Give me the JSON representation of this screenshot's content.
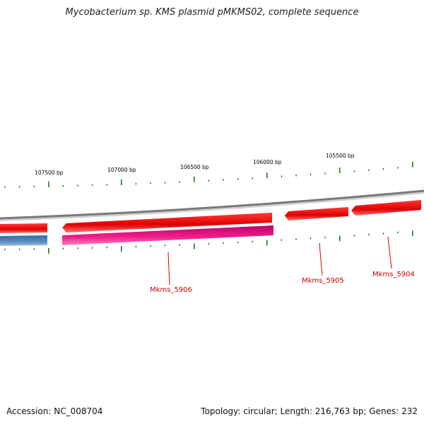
{
  "title": "Mycobacterium sp. KMS plasmid pMKMS02, complete sequence",
  "ruler": {
    "labels": [
      "107500 bp",
      "107000 bp",
      "106500 bp",
      "106000 bp",
      "105500 bp"
    ]
  },
  "genes": [
    {
      "locus": "Mkms_5906",
      "label_color": "#cc0000"
    },
    {
      "locus": "Mkms_5905",
      "label_color": "#cc0000"
    },
    {
      "locus": "Mkms_5904",
      "label_color": "#cc0000"
    }
  ],
  "colors": {
    "forward_strand": "#ee1111",
    "highlight_gene": "#e0147a",
    "blue_feature": "#4a7fb0",
    "backbone": "#888888",
    "ticks": "#1e7a1e"
  },
  "footer": {
    "accession": "Accession: NC_008704",
    "stats": "Topology: circular; Length: 216,763 bp; Genes: 232"
  }
}
